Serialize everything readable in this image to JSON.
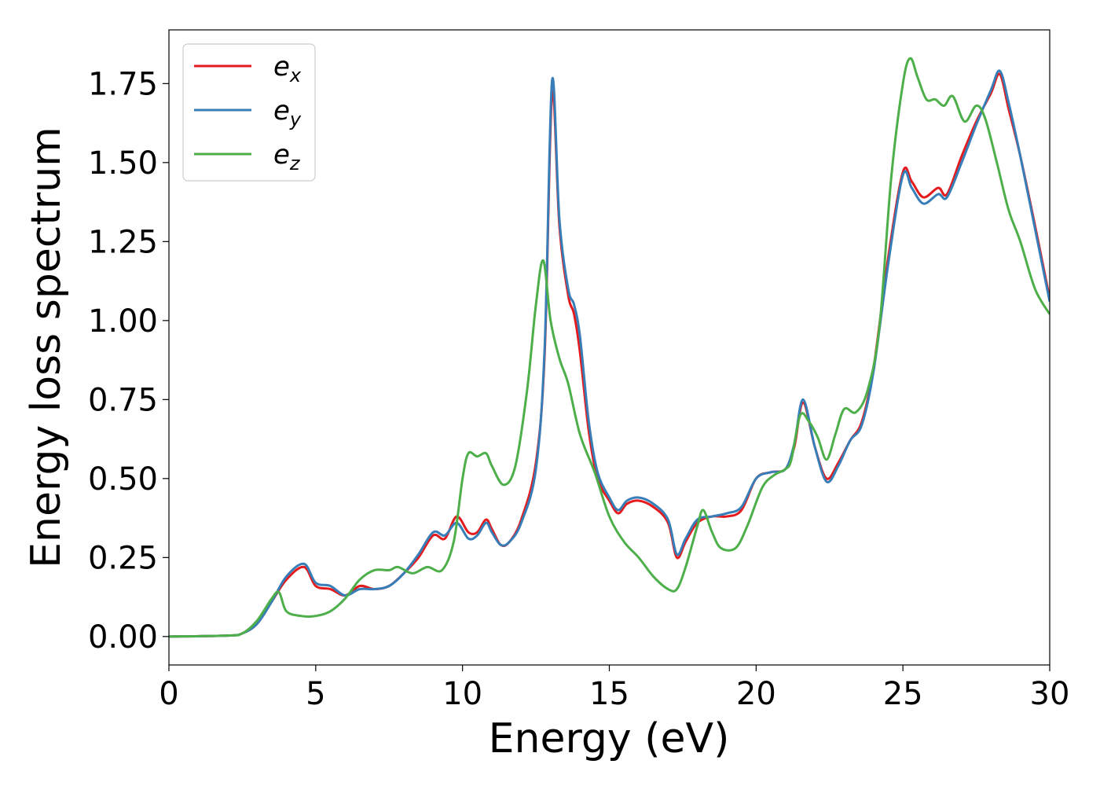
{
  "chart_data": {
    "type": "line",
    "xlabel": "Energy (eV)",
    "ylabel": "Energy loss spectrum",
    "xlim": [
      0,
      30
    ],
    "ylim": [
      -0.09,
      1.92
    ],
    "xticks": [
      0,
      5,
      10,
      15,
      20,
      25,
      30
    ],
    "xtick_labels": [
      "0",
      "5",
      "10",
      "15",
      "20",
      "25",
      "30"
    ],
    "yticks": [
      0,
      0.25,
      0.5,
      0.75,
      1.0,
      1.25,
      1.5,
      1.75
    ],
    "ytick_labels": [
      "0.00",
      "0.25",
      "0.50",
      "0.75",
      "1.00",
      "1.25",
      "1.50",
      "1.75"
    ],
    "grid": false,
    "legend_position": "top-left",
    "series": [
      {
        "name": "e_x",
        "legend_base": "e",
        "legend_sub": "x",
        "color": "#e41a1c",
        "points": [
          [
            0,
            0
          ],
          [
            2,
            0.003
          ],
          [
            2.5,
            0.01
          ],
          [
            3,
            0.04
          ],
          [
            3.5,
            0.11
          ],
          [
            4,
            0.18
          ],
          [
            4.6,
            0.22
          ],
          [
            5,
            0.16
          ],
          [
            5.5,
            0.15
          ],
          [
            6,
            0.13
          ],
          [
            6.5,
            0.16
          ],
          [
            7,
            0.15
          ],
          [
            7.5,
            0.16
          ],
          [
            8,
            0.2
          ],
          [
            8.5,
            0.25
          ],
          [
            9,
            0.32
          ],
          [
            9.4,
            0.31
          ],
          [
            9.8,
            0.38
          ],
          [
            10.2,
            0.33
          ],
          [
            10.5,
            0.33
          ],
          [
            10.8,
            0.37
          ],
          [
            11,
            0.34
          ],
          [
            11.3,
            0.29
          ],
          [
            11.6,
            0.3
          ],
          [
            12,
            0.37
          ],
          [
            12.5,
            0.55
          ],
          [
            12.8,
            0.9
          ],
          [
            13.05,
            1.72
          ],
          [
            13.3,
            1.3
          ],
          [
            13.6,
            1.08
          ],
          [
            13.8,
            1.02
          ],
          [
            14,
            0.9
          ],
          [
            14.3,
            0.65
          ],
          [
            14.6,
            0.5
          ],
          [
            15,
            0.43
          ],
          [
            15.3,
            0.39
          ],
          [
            15.6,
            0.42
          ],
          [
            16,
            0.43
          ],
          [
            16.5,
            0.41
          ],
          [
            17,
            0.36
          ],
          [
            17.3,
            0.25
          ],
          [
            17.6,
            0.3
          ],
          [
            18,
            0.36
          ],
          [
            18.5,
            0.38
          ],
          [
            19,
            0.38
          ],
          [
            19.5,
            0.4
          ],
          [
            20,
            0.5
          ],
          [
            20.5,
            0.52
          ],
          [
            21,
            0.53
          ],
          [
            21.3,
            0.6
          ],
          [
            21.6,
            0.74
          ],
          [
            22,
            0.6
          ],
          [
            22.4,
            0.5
          ],
          [
            22.8,
            0.55
          ],
          [
            23.2,
            0.62
          ],
          [
            23.6,
            0.68
          ],
          [
            24,
            0.85
          ],
          [
            24.5,
            1.2
          ],
          [
            25,
            1.47
          ],
          [
            25.3,
            1.44
          ],
          [
            25.7,
            1.39
          ],
          [
            26.2,
            1.42
          ],
          [
            26.5,
            1.4
          ],
          [
            27,
            1.52
          ],
          [
            27.5,
            1.63
          ],
          [
            28,
            1.72
          ],
          [
            28.3,
            1.78
          ],
          [
            28.6,
            1.67
          ],
          [
            29,
            1.52
          ],
          [
            29.5,
            1.3
          ],
          [
            30,
            1.07
          ]
        ]
      },
      {
        "name": "e_y",
        "legend_base": "e",
        "legend_sub": "y",
        "color": "#377eb8",
        "points": [
          [
            0,
            0
          ],
          [
            2,
            0.003
          ],
          [
            2.5,
            0.01
          ],
          [
            3,
            0.04
          ],
          [
            3.5,
            0.11
          ],
          [
            4,
            0.19
          ],
          [
            4.6,
            0.23
          ],
          [
            5,
            0.17
          ],
          [
            5.5,
            0.16
          ],
          [
            6,
            0.13
          ],
          [
            6.5,
            0.15
          ],
          [
            7,
            0.15
          ],
          [
            7.5,
            0.16
          ],
          [
            8,
            0.2
          ],
          [
            8.5,
            0.26
          ],
          [
            9,
            0.33
          ],
          [
            9.4,
            0.32
          ],
          [
            9.8,
            0.36
          ],
          [
            10.2,
            0.31
          ],
          [
            10.5,
            0.32
          ],
          [
            10.8,
            0.36
          ],
          [
            11,
            0.33
          ],
          [
            11.3,
            0.29
          ],
          [
            11.6,
            0.3
          ],
          [
            12,
            0.36
          ],
          [
            12.5,
            0.53
          ],
          [
            12.8,
            0.92
          ],
          [
            13.05,
            1.76
          ],
          [
            13.3,
            1.32
          ],
          [
            13.6,
            1.1
          ],
          [
            13.8,
            1.05
          ],
          [
            14,
            0.95
          ],
          [
            14.3,
            0.68
          ],
          [
            14.6,
            0.52
          ],
          [
            15,
            0.44
          ],
          [
            15.3,
            0.4
          ],
          [
            15.6,
            0.43
          ],
          [
            16,
            0.44
          ],
          [
            16.5,
            0.42
          ],
          [
            17,
            0.37
          ],
          [
            17.3,
            0.26
          ],
          [
            17.6,
            0.31
          ],
          [
            18,
            0.37
          ],
          [
            18.5,
            0.38
          ],
          [
            19,
            0.39
          ],
          [
            19.5,
            0.41
          ],
          [
            20,
            0.5
          ],
          [
            20.5,
            0.52
          ],
          [
            21,
            0.53
          ],
          [
            21.3,
            0.61
          ],
          [
            21.6,
            0.75
          ],
          [
            22,
            0.6
          ],
          [
            22.4,
            0.49
          ],
          [
            22.8,
            0.54
          ],
          [
            23.2,
            0.62
          ],
          [
            23.6,
            0.67
          ],
          [
            24,
            0.84
          ],
          [
            24.5,
            1.18
          ],
          [
            25,
            1.46
          ],
          [
            25.3,
            1.42
          ],
          [
            25.7,
            1.37
          ],
          [
            26.2,
            1.4
          ],
          [
            26.5,
            1.39
          ],
          [
            27,
            1.5
          ],
          [
            27.5,
            1.62
          ],
          [
            28,
            1.73
          ],
          [
            28.3,
            1.79
          ],
          [
            28.6,
            1.69
          ],
          [
            29,
            1.52
          ],
          [
            29.5,
            1.29
          ],
          [
            30,
            1.06
          ]
        ]
      },
      {
        "name": "e_z",
        "legend_base": "e",
        "legend_sub": "z",
        "color": "#4daf4a",
        "points": [
          [
            0,
            0
          ],
          [
            2,
            0.003
          ],
          [
            2.5,
            0.01
          ],
          [
            3,
            0.05
          ],
          [
            3.5,
            0.12
          ],
          [
            3.75,
            0.14
          ],
          [
            4,
            0.08
          ],
          [
            4.5,
            0.065
          ],
          [
            5,
            0.065
          ],
          [
            5.5,
            0.08
          ],
          [
            6,
            0.12
          ],
          [
            6.5,
            0.18
          ],
          [
            7,
            0.21
          ],
          [
            7.5,
            0.21
          ],
          [
            7.8,
            0.22
          ],
          [
            8.3,
            0.2
          ],
          [
            8.8,
            0.22
          ],
          [
            9.3,
            0.21
          ],
          [
            9.7,
            0.3
          ],
          [
            10,
            0.5
          ],
          [
            10.2,
            0.58
          ],
          [
            10.5,
            0.57
          ],
          [
            10.8,
            0.58
          ],
          [
            11,
            0.54
          ],
          [
            11.4,
            0.48
          ],
          [
            11.8,
            0.54
          ],
          [
            12.2,
            0.78
          ],
          [
            12.5,
            1.05
          ],
          [
            12.75,
            1.19
          ],
          [
            13,
            1.0
          ],
          [
            13.3,
            0.88
          ],
          [
            13.6,
            0.8
          ],
          [
            14,
            0.64
          ],
          [
            14.5,
            0.52
          ],
          [
            15,
            0.38
          ],
          [
            15.5,
            0.3
          ],
          [
            16,
            0.25
          ],
          [
            16.5,
            0.19
          ],
          [
            17,
            0.15
          ],
          [
            17.3,
            0.15
          ],
          [
            17.6,
            0.22
          ],
          [
            18,
            0.35
          ],
          [
            18.2,
            0.4
          ],
          [
            18.5,
            0.33
          ],
          [
            18.8,
            0.28
          ],
          [
            19.3,
            0.28
          ],
          [
            19.7,
            0.35
          ],
          [
            20.2,
            0.47
          ],
          [
            20.6,
            0.51
          ],
          [
            21,
            0.53
          ],
          [
            21.2,
            0.56
          ],
          [
            21.5,
            0.7
          ],
          [
            21.8,
            0.68
          ],
          [
            22.1,
            0.63
          ],
          [
            22.4,
            0.56
          ],
          [
            22.7,
            0.64
          ],
          [
            23,
            0.72
          ],
          [
            23.4,
            0.71
          ],
          [
            23.8,
            0.78
          ],
          [
            24.2,
            0.98
          ],
          [
            24.6,
            1.45
          ],
          [
            25,
            1.75
          ],
          [
            25.25,
            1.83
          ],
          [
            25.5,
            1.77
          ],
          [
            25.8,
            1.7
          ],
          [
            26.1,
            1.7
          ],
          [
            26.4,
            1.68
          ],
          [
            26.7,
            1.71
          ],
          [
            27.1,
            1.63
          ],
          [
            27.5,
            1.68
          ],
          [
            27.8,
            1.64
          ],
          [
            28.2,
            1.5
          ],
          [
            28.6,
            1.35
          ],
          [
            29,
            1.25
          ],
          [
            29.5,
            1.1
          ],
          [
            30,
            1.02
          ]
        ]
      }
    ]
  }
}
